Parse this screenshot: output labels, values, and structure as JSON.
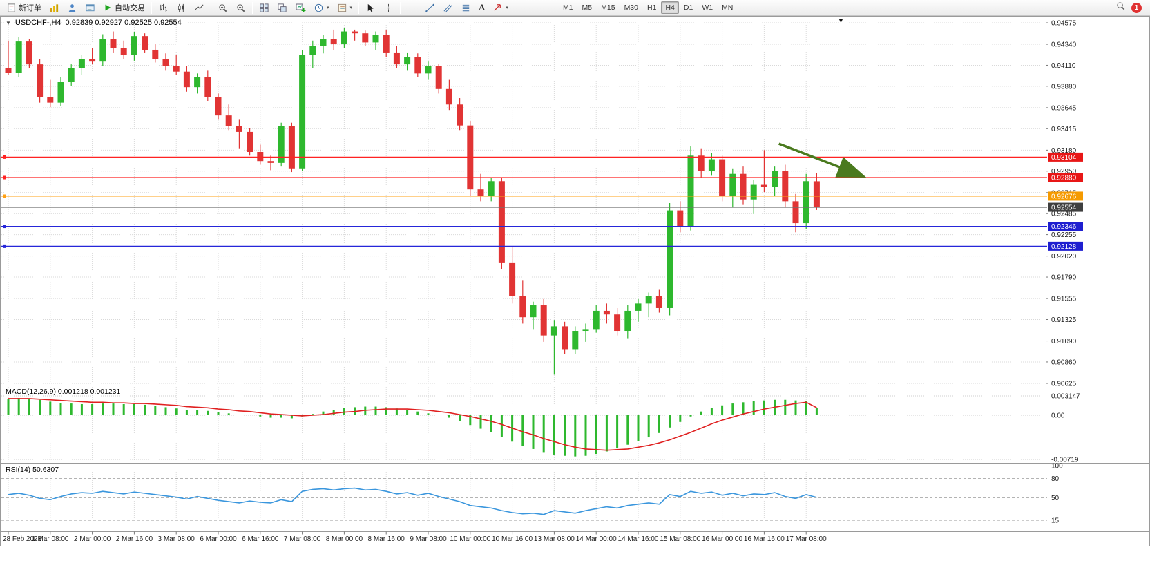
{
  "toolbar": {
    "new_order_label": "新订单",
    "auto_trading_label": "自动交易",
    "text_tool_label": "A",
    "caret_glyph": "▾",
    "timeframes": [
      "M1",
      "M5",
      "M15",
      "M30",
      "H1",
      "H4",
      "D1",
      "W1",
      "MN"
    ],
    "active_timeframe": "H4",
    "notification_count": "1"
  },
  "chart": {
    "collapse_glyph": "▼",
    "symbol_title": "USDCHF-,H4",
    "ohlc": "0.92839 0.92927 0.92525 0.92554",
    "menu_glyph": "▼"
  },
  "macd_panel": {
    "label": "MACD(12,26,9) 0.001218 0.001231"
  },
  "rsi_panel": {
    "label": "RSI(14) 50.6307"
  },
  "chart_data": {
    "type": "candlestick",
    "symbol": "USDCHF",
    "timeframe": "H4",
    "price_axis": {
      "top_price": 0.94575,
      "bottom_price": 0.90625,
      "ticks": [
        "0.94575",
        "0.94340",
        "0.94110",
        "0.93880",
        "0.93645",
        "0.93415",
        "0.93180",
        "0.92950",
        "0.92715",
        "0.92485",
        "0.92255",
        "0.92020",
        "0.91790",
        "0.91555",
        "0.91325",
        "0.91090",
        "0.90860",
        "0.90625"
      ]
    },
    "time_labels": [
      "28 Feb 2023",
      "1 Mar 08:00",
      "2 Mar 00:00",
      "2 Mar 16:00",
      "3 Mar 08:00",
      "6 Mar 00:00",
      "6 Mar 16:00",
      "7 Mar 08:00",
      "8 Mar 00:00",
      "8 Mar 16:00",
      "9 Mar 08:00",
      "10 Mar 00:00",
      "10 Mar 16:00",
      "13 Mar 08:00",
      "14 Mar 00:00",
      "14 Mar 16:00",
      "15 Mar 08:00",
      "16 Mar 00:00",
      "16 Mar 16:00",
      "17 Mar 08:00"
    ],
    "label_every": 4,
    "candles": [
      [
        0.9408,
        0.9438,
        0.94,
        0.9403
      ],
      [
        0.9403,
        0.9442,
        0.9398,
        0.9437
      ],
      [
        0.9437,
        0.944,
        0.9408,
        0.9412
      ],
      [
        0.9412,
        0.9418,
        0.937,
        0.9376
      ],
      [
        0.9376,
        0.9395,
        0.9365,
        0.937
      ],
      [
        0.937,
        0.9398,
        0.9366,
        0.9393
      ],
      [
        0.9393,
        0.9412,
        0.9388,
        0.9408
      ],
      [
        0.9408,
        0.9422,
        0.94,
        0.9418
      ],
      [
        0.9418,
        0.943,
        0.9412,
        0.9415
      ],
      [
        0.9415,
        0.9445,
        0.941,
        0.944
      ],
      [
        0.944,
        0.9448,
        0.9425,
        0.943
      ],
      [
        0.943,
        0.9438,
        0.9418,
        0.9422
      ],
      [
        0.9422,
        0.9447,
        0.9416,
        0.9443
      ],
      [
        0.9443,
        0.9446,
        0.9425,
        0.9428
      ],
      [
        0.9428,
        0.9434,
        0.9414,
        0.9418
      ],
      [
        0.9418,
        0.9424,
        0.9405,
        0.941
      ],
      [
        0.941,
        0.9422,
        0.94,
        0.9404
      ],
      [
        0.9404,
        0.941,
        0.9382,
        0.9387
      ],
      [
        0.9387,
        0.9402,
        0.938,
        0.9398
      ],
      [
        0.9398,
        0.9405,
        0.9372,
        0.9376
      ],
      [
        0.9376,
        0.938,
        0.9352,
        0.9356
      ],
      [
        0.9356,
        0.9368,
        0.934,
        0.9344
      ],
      [
        0.9344,
        0.9352,
        0.932,
        0.9338
      ],
      [
        0.9338,
        0.9342,
        0.9312,
        0.9316
      ],
      [
        0.9316,
        0.9324,
        0.9302,
        0.9306
      ],
      [
        0.9306,
        0.9312,
        0.9296,
        0.9304
      ],
      [
        0.9304,
        0.9348,
        0.93,
        0.9344
      ],
      [
        0.9344,
        0.9348,
        0.9294,
        0.9298
      ],
      [
        0.9298,
        0.9428,
        0.9295,
        0.9422
      ],
      [
        0.9422,
        0.9438,
        0.9408,
        0.9432
      ],
      [
        0.9432,
        0.9444,
        0.9424,
        0.944
      ],
      [
        0.944,
        0.945,
        0.9428,
        0.9434
      ],
      [
        0.9434,
        0.9452,
        0.943,
        0.9448
      ],
      [
        0.9448,
        0.945,
        0.9438,
        0.9446
      ],
      [
        0.9446,
        0.9449,
        0.9432,
        0.9436
      ],
      [
        0.9436,
        0.9448,
        0.9428,
        0.9444
      ],
      [
        0.9444,
        0.945,
        0.942,
        0.9425
      ],
      [
        0.9425,
        0.9432,
        0.9408,
        0.9412
      ],
      [
        0.9412,
        0.9425,
        0.9405,
        0.942
      ],
      [
        0.942,
        0.9424,
        0.9398,
        0.9402
      ],
      [
        0.9402,
        0.9415,
        0.9395,
        0.941
      ],
      [
        0.941,
        0.9412,
        0.938,
        0.9385
      ],
      [
        0.9385,
        0.9395,
        0.9362,
        0.9368
      ],
      [
        0.9368,
        0.9375,
        0.934,
        0.9345
      ],
      [
        0.9345,
        0.935,
        0.9268,
        0.9275
      ],
      [
        0.9275,
        0.9292,
        0.9262,
        0.9268
      ],
      [
        0.9268,
        0.9288,
        0.9262,
        0.9284
      ],
      [
        0.9284,
        0.9288,
        0.9188,
        0.9195
      ],
      [
        0.9195,
        0.9212,
        0.915,
        0.9158
      ],
      [
        0.9158,
        0.9175,
        0.9128,
        0.9135
      ],
      [
        0.9135,
        0.9152,
        0.9122,
        0.9148
      ],
      [
        0.9148,
        0.9155,
        0.9108,
        0.9115
      ],
      [
        0.9115,
        0.9132,
        0.9072,
        0.9125
      ],
      [
        0.9125,
        0.913,
        0.9095,
        0.91
      ],
      [
        0.91,
        0.9125,
        0.9095,
        0.912
      ],
      [
        0.912,
        0.9128,
        0.9108,
        0.9122
      ],
      [
        0.9122,
        0.9148,
        0.9118,
        0.9142
      ],
      [
        0.9142,
        0.915,
        0.9128,
        0.9138
      ],
      [
        0.9138,
        0.9145,
        0.9115,
        0.912
      ],
      [
        0.912,
        0.9148,
        0.9112,
        0.9142
      ],
      [
        0.9142,
        0.9155,
        0.913,
        0.915
      ],
      [
        0.915,
        0.9162,
        0.9135,
        0.9158
      ],
      [
        0.9158,
        0.9165,
        0.914,
        0.9145
      ],
      [
        0.9145,
        0.926,
        0.9137,
        0.9252
      ],
      [
        0.9252,
        0.9262,
        0.9228,
        0.9235
      ],
      [
        0.9235,
        0.9322,
        0.923,
        0.9312
      ],
      [
        0.9312,
        0.932,
        0.9288,
        0.9295
      ],
      [
        0.9295,
        0.9315,
        0.929,
        0.9308
      ],
      [
        0.9308,
        0.9312,
        0.9262,
        0.9268
      ],
      [
        0.9268,
        0.9298,
        0.9255,
        0.9292
      ],
      [
        0.9292,
        0.93,
        0.9258,
        0.9264
      ],
      [
        0.9264,
        0.9285,
        0.9248,
        0.928
      ],
      [
        0.928,
        0.9318,
        0.9272,
        0.9278
      ],
      [
        0.9278,
        0.93,
        0.9268,
        0.9295
      ],
      [
        0.9295,
        0.9302,
        0.9255,
        0.9262
      ],
      [
        0.9262,
        0.927,
        0.9228,
        0.9238
      ],
      [
        0.9238,
        0.9292,
        0.9232,
        0.9284
      ],
      [
        0.92839,
        0.92927,
        0.92525,
        0.92554
      ]
    ],
    "colors": {
      "bull": "#2eb82e",
      "bear": "#e13434",
      "grid": "#d9d9d9",
      "macd_bar": "#2eb82e",
      "macd_signal": "#e02020",
      "rsi_line": "#3a96dd",
      "arrow": "#4a7a1e",
      "current_line": "#707070",
      "current_tag_bg": "#3f3f3f"
    },
    "hlines": [
      {
        "price": 0.93104,
        "label": "0.93104",
        "color": "#ff2222",
        "tag_bg": "#e81717"
      },
      {
        "price": 0.9288,
        "label": "0.92880",
        "color": "#ff2222",
        "tag_bg": "#e81717"
      },
      {
        "price": 0.92676,
        "label": "0.92676",
        "color": "#ffa014",
        "tag_bg": "#f59a00"
      },
      {
        "price": 0.92346,
        "label": "0.92346",
        "color": "#2626d9",
        "tag_bg": "#1f1fd0"
      },
      {
        "price": 0.92128,
        "label": "0.92128",
        "color": "#2626d9",
        "tag_bg": "#1f1fd0"
      }
    ],
    "current_price": {
      "price": 0.92554,
      "label": "0.92554"
    },
    "arrow": {
      "from_index": 73.4,
      "from_price": 0.9325,
      "to_index": 81.3,
      "to_price": 0.929
    },
    "macd": {
      "histogram": [
        0.0026,
        0.0028,
        0.0027,
        0.0025,
        0.0022,
        0.002,
        0.0019,
        0.0018,
        0.0018,
        0.0019,
        0.0019,
        0.0018,
        0.0018,
        0.0017,
        0.0015,
        0.0013,
        0.0011,
        0.0009,
        0.0008,
        0.0007,
        0.0005,
        0.0003,
        0.0001,
        0.0,
        -0.0002,
        -0.0004,
        -0.0004,
        -0.0005,
        -0.0002,
        0.0002,
        0.0006,
        0.0009,
        0.0012,
        0.0013,
        0.0014,
        0.0014,
        0.0013,
        0.0011,
        0.0009,
        0.0006,
        0.0003,
        0.0,
        -0.0004,
        -0.0009,
        -0.0016,
        -0.0022,
        -0.0027,
        -0.0035,
        -0.0043,
        -0.005,
        -0.0055,
        -0.006,
        -0.0064,
        -0.0066,
        -0.0067,
        -0.0066,
        -0.0063,
        -0.0059,
        -0.0054,
        -0.0048,
        -0.0042,
        -0.0036,
        -0.0029,
        -0.002,
        -0.0011,
        -0.0002,
        0.0006,
        0.0012,
        0.0016,
        0.0019,
        0.0021,
        0.0023,
        0.0024,
        0.0025,
        0.0025,
        0.0024,
        0.0023,
        0.001218
      ],
      "signal": [
        0.0027,
        0.0027,
        0.0027,
        0.0026,
        0.0025,
        0.0024,
        0.0023,
        0.0022,
        0.0021,
        0.0021,
        0.002,
        0.002,
        0.0019,
        0.0019,
        0.0018,
        0.0017,
        0.0016,
        0.0014,
        0.0013,
        0.0012,
        0.001,
        0.0009,
        0.0007,
        0.0006,
        0.0004,
        0.0002,
        0.0001,
        0.0,
        -0.0001,
        0.0,
        0.0001,
        0.0003,
        0.0005,
        0.0006,
        0.0008,
        0.0009,
        0.001,
        0.001,
        0.001,
        0.0009,
        0.0008,
        0.0006,
        0.0004,
        0.0001,
        -0.0002,
        -0.0006,
        -0.001,
        -0.0015,
        -0.0021,
        -0.0027,
        -0.0032,
        -0.0038,
        -0.0043,
        -0.0048,
        -0.0052,
        -0.0055,
        -0.0056,
        -0.0057,
        -0.0056,
        -0.0055,
        -0.0052,
        -0.0049,
        -0.0045,
        -0.004,
        -0.0034,
        -0.0028,
        -0.0021,
        -0.0014,
        -0.0008,
        -0.0003,
        0.0002,
        0.0006,
        0.001,
        0.0013,
        0.0016,
        0.0019,
        0.0021,
        0.001231
      ],
      "axis_labels": [
        {
          "text": "0.003147",
          "value": 0.003147
        },
        {
          "text": "0.00",
          "value": 0
        },
        {
          "text": "-0.00719",
          "value": -0.00719
        }
      ]
    },
    "rsi": {
      "values": [
        55,
        57,
        54,
        49,
        47,
        52,
        56,
        58,
        57,
        60,
        58,
        56,
        59,
        57,
        55,
        53,
        51,
        48,
        52,
        49,
        46,
        44,
        42,
        45,
        43,
        42,
        47,
        44,
        60,
        63,
        64,
        62,
        64,
        65,
        62,
        63,
        60,
        56,
        58,
        54,
        57,
        52,
        48,
        44,
        38,
        36,
        34,
        30,
        27,
        25,
        26,
        24,
        30,
        28,
        26,
        30,
        33,
        36,
        34,
        38,
        40,
        42,
        40,
        55,
        52,
        60,
        57,
        59,
        54,
        57,
        53,
        56,
        55,
        58,
        52,
        49,
        55,
        50.6307
      ],
      "levels": [
        80,
        50,
        15
      ],
      "axis_labels": [
        {
          "text": "100",
          "value": 100
        },
        {
          "text": "80",
          "value": 80
        },
        {
          "text": "50",
          "value": 50
        },
        {
          "text": "15",
          "value": 15
        }
      ]
    }
  }
}
